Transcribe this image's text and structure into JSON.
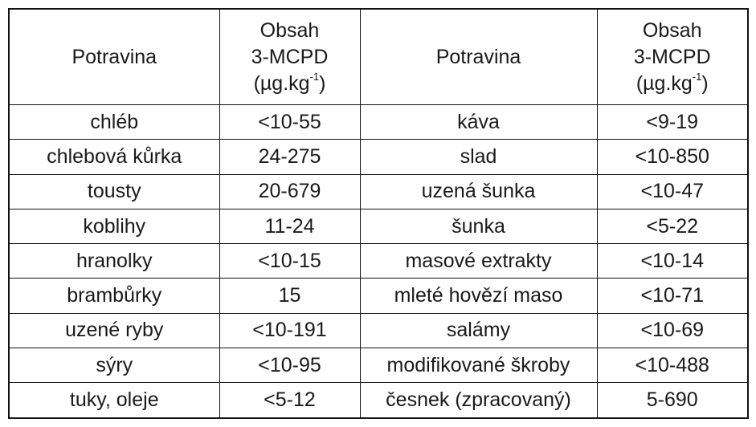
{
  "table": {
    "header": [
      {
        "name": "Potravina"
      },
      {
        "line1": "Obsah",
        "line2": "3-MCPD",
        "unit": "(µg.kg",
        "exp": "-1",
        "close": ")"
      },
      {
        "name": "Potravina"
      },
      {
        "line1": "Obsah",
        "line2": "3-MCPD",
        "unit": "(µg.kg",
        "exp": "-1",
        "close": ")"
      }
    ],
    "rows": [
      [
        "chléb",
        "<10-55",
        "káva",
        "<9-19"
      ],
      [
        "chlebová kůrka",
        "24-275",
        "slad",
        "<10-850"
      ],
      [
        "tousty",
        "20-679",
        "uzená šunka",
        "<10-47"
      ],
      [
        "koblihy",
        "11-24",
        "šunka",
        "<5-22"
      ],
      [
        "hranolky",
        "<10-15",
        "masové extrakty",
        "<10-14"
      ],
      [
        "brambůrky",
        "15",
        "mleté hovězí maso",
        "<10-71"
      ],
      [
        "uzené ryby",
        "<10-191",
        "salámy",
        "<10-69"
      ],
      [
        "sýry",
        "<10-95",
        "modifikované škroby",
        "<10-488"
      ],
      [
        "tuky, oleje",
        "<5-12",
        "česnek (zpracovaný)",
        "5-690"
      ]
    ]
  }
}
